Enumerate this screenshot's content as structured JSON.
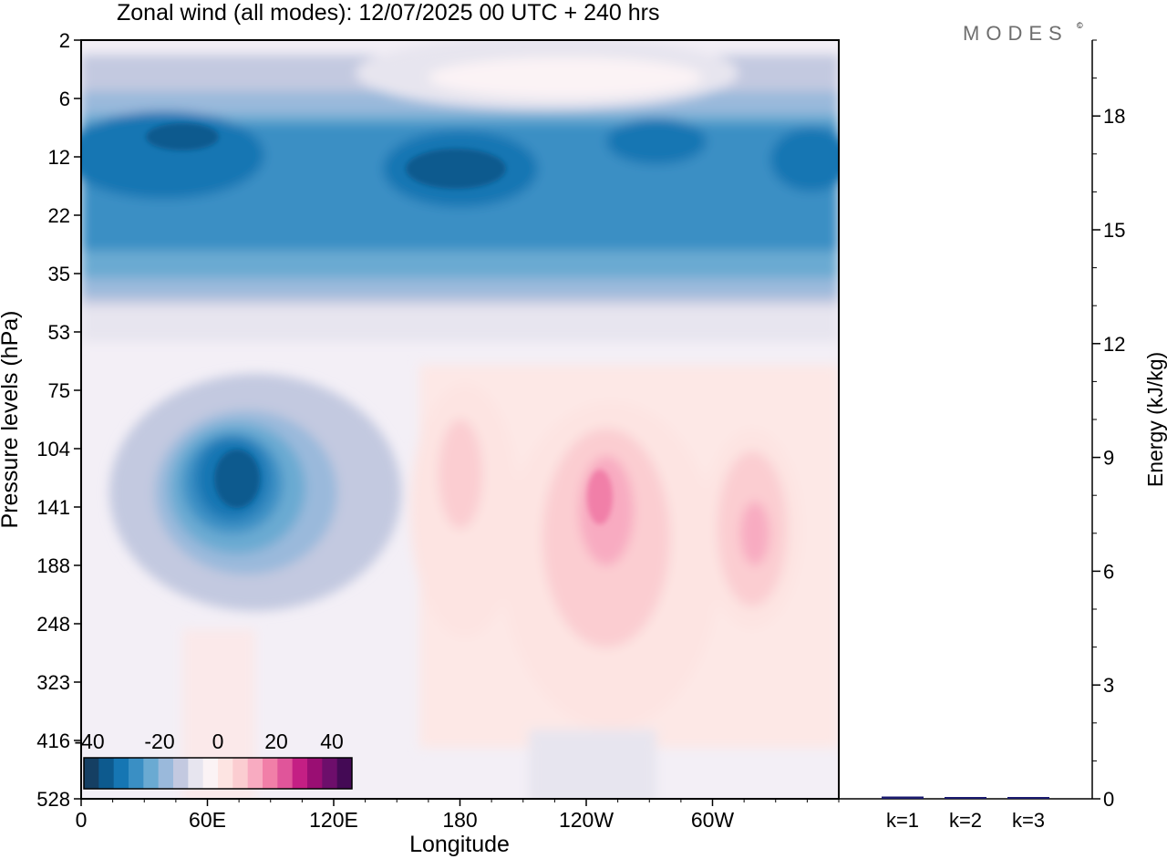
{
  "title": "Zonal wind (all modes):  12/07/2025  00 UTC  + 240 hrs",
  "logo": {
    "text": "MODES",
    "mark": "©"
  },
  "chart_data": [
    {
      "type": "heatmap",
      "variable": "Zonal wind",
      "xlabel": "Longitude",
      "ylabel": "Pressure levels (hPa)",
      "x_ticks": [
        "0",
        "60E",
        "120E",
        "180",
        "120W",
        "60W"
      ],
      "y_ticks": [
        "2",
        "6",
        "12",
        "22",
        "35",
        "53",
        "75",
        "104",
        "141",
        "188",
        "248",
        "323",
        "416",
        "528"
      ],
      "colorbar": {
        "ticks": [
          "-40",
          "-20",
          "0",
          "20",
          "40"
        ],
        "colors": [
          "#153f63",
          "#0d5a8e",
          "#1676b3",
          "#3a8fc4",
          "#6aaad2",
          "#9ab9db",
          "#c3c9e0",
          "#e7e5ef",
          "#fbf3f5",
          "#fde4e2",
          "#fbcdd1",
          "#f8abc1",
          "#f17fa8",
          "#e0559a",
          "#c41f84",
          "#9a0e73",
          "#6d0e6b",
          "#440a55"
        ]
      },
      "features": [
        {
          "name": "upper easterly band (strongest)",
          "lon_range": [
            0,
            360
          ],
          "levels_hPa": [
            8,
            28
          ],
          "value": -32
        },
        {
          "name": "upper easterly belt",
          "lon_range": [
            0,
            360
          ],
          "levels_hPa": [
            4,
            40
          ],
          "value": -22
        },
        {
          "name": "weak westerly patch near top",
          "lon_range": [
            165,
            290
          ],
          "levels_hPa": [
            2,
            6
          ],
          "value": 3
        },
        {
          "name": "easterly core",
          "lon_range": [
            45,
            90
          ],
          "levels_hPa": [
            95,
            170
          ],
          "value": -32
        },
        {
          "name": "westerly core",
          "lon_range": [
            225,
            265
          ],
          "levels_hPa": [
            110,
            220
          ],
          "value": 16
        },
        {
          "name": "westerly core",
          "lon_range": [
            300,
            330
          ],
          "levels_hPa": [
            110,
            230
          ],
          "value": 14
        },
        {
          "name": "westerly region",
          "lon_range": [
            165,
            205
          ],
          "levels_hPa": [
            100,
            260
          ],
          "value": 8
        }
      ]
    },
    {
      "type": "bar",
      "ylabel": "Energy (kJ/kg)",
      "categories": [
        "k=1",
        "k=2",
        "k=3"
      ],
      "values": [
        0.06,
        0.02,
        0.01
      ],
      "ylim": [
        0,
        20
      ],
      "y_ticks": [
        "0",
        "3",
        "6",
        "9",
        "12",
        "15",
        "18"
      ],
      "bar_colors": [
        "#1a1a6e",
        "#1a1a6e",
        "#1a1a6e"
      ]
    }
  ]
}
